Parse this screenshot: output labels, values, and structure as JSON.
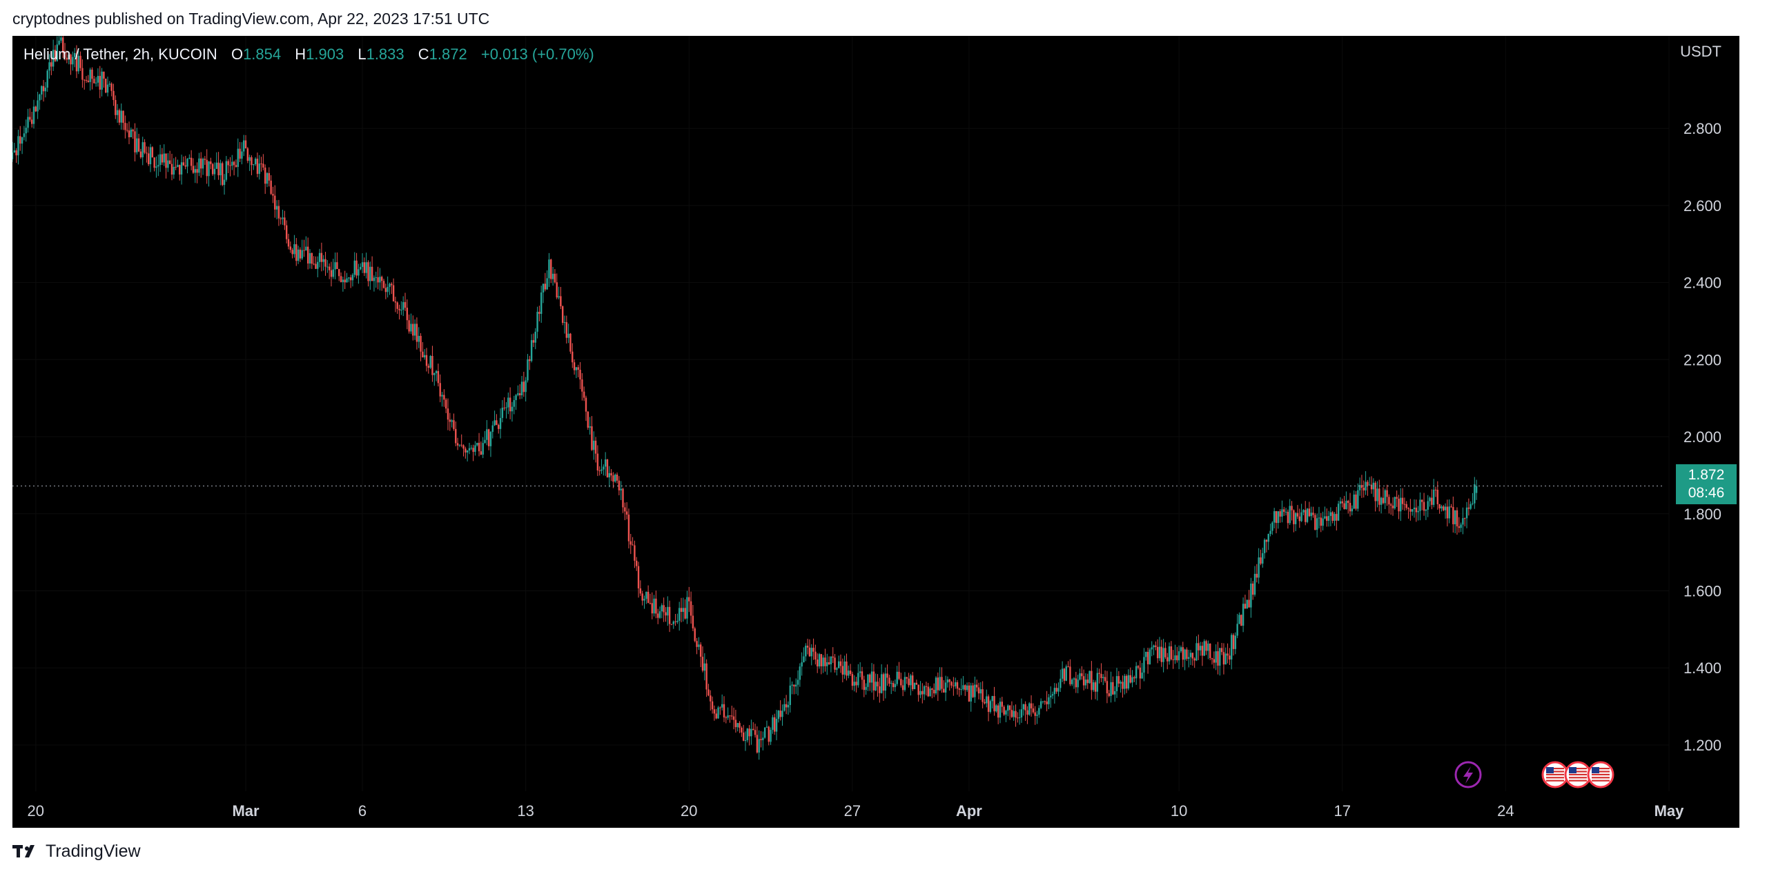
{
  "header": {
    "published_text": "cryptodnes published on TradingView.com, Apr 22, 2023 17:51 UTC"
  },
  "legend": {
    "symbol": "Helium / Tether, 2h, KUCOIN",
    "open_label": "O",
    "open_value": "1.854",
    "high_label": "H",
    "high_value": "1.903",
    "low_label": "L",
    "low_value": "1.833",
    "close_label": "C",
    "close_value": "1.872",
    "change": "+0.013 (+0.70%)"
  },
  "price_axis": {
    "currency": "USDT",
    "last_price": "1.872",
    "countdown": "08:46"
  },
  "footer": {
    "brand": "TradingView"
  },
  "colors": {
    "background": "#000000",
    "up": "#26a69a",
    "down": "#ef5350",
    "axis_text": "#d1d4dc",
    "price_line": "#8a8f98",
    "event_lightning": "#9c27b0",
    "event_flag": "#f23645"
  },
  "events": {
    "lightning_icon": "lightning-icon",
    "us_flag_icons": [
      "us-flag-icon",
      "us-flag-icon",
      "us-flag-icon"
    ]
  },
  "chart_data": {
    "type": "candlestick",
    "title": "Helium / Tether, 2h, KUCOIN",
    "ylabel": "USDT",
    "ylim": [
      1.08,
      3.04
    ],
    "y_ticks": [
      "1.200",
      "1.400",
      "1.600",
      "1.800",
      "2.000",
      "2.200",
      "2.400",
      "2.600",
      "2.800"
    ],
    "x_ticks": [
      {
        "label": "20",
        "date": "2023-02-20"
      },
      {
        "label": "Mar",
        "date": "2023-03-01"
      },
      {
        "label": "6",
        "date": "2023-03-06"
      },
      {
        "label": "13",
        "date": "2023-03-13"
      },
      {
        "label": "20",
        "date": "2023-03-20"
      },
      {
        "label": "27",
        "date": "2023-03-27"
      },
      {
        "label": "Apr",
        "date": "2023-04-01"
      },
      {
        "label": "10",
        "date": "2023-04-10"
      },
      {
        "label": "17",
        "date": "2023-04-17"
      },
      {
        "label": "24",
        "date": "2023-04-24"
      },
      {
        "label": "May",
        "date": "2023-05-01"
      }
    ],
    "x_range": [
      "2023-02-19",
      "2023-05-01"
    ],
    "last_close": 1.872,
    "price_path": [
      [
        "2023-02-19",
        2.72
      ],
      [
        "2023-02-20",
        2.85
      ],
      [
        "2023-02-21",
        3.02
      ],
      [
        "2023-02-22",
        2.95
      ],
      [
        "2023-02-23",
        2.92
      ],
      [
        "2023-02-24",
        2.78
      ],
      [
        "2023-02-25",
        2.72
      ],
      [
        "2023-02-26",
        2.7
      ],
      [
        "2023-02-27",
        2.71
      ],
      [
        "2023-02-28",
        2.68
      ],
      [
        "2023-03-01",
        2.75
      ],
      [
        "2023-03-02",
        2.66
      ],
      [
        "2023-03-03",
        2.48
      ],
      [
        "2023-03-04",
        2.46
      ],
      [
        "2023-03-05",
        2.42
      ],
      [
        "2023-03-06",
        2.44
      ],
      [
        "2023-03-07",
        2.4
      ],
      [
        "2023-03-08",
        2.3
      ],
      [
        "2023-03-09",
        2.18
      ],
      [
        "2023-03-10",
        1.99
      ],
      [
        "2023-03-11",
        1.96
      ],
      [
        "2023-03-12",
        2.06
      ],
      [
        "2023-03-13",
        2.15
      ],
      [
        "2023-03-14",
        2.45
      ],
      [
        "2023-03-15",
        2.22
      ],
      [
        "2023-03-16",
        1.94
      ],
      [
        "2023-03-17",
        1.88
      ],
      [
        "2023-03-18",
        1.58
      ],
      [
        "2023-03-19",
        1.53
      ],
      [
        "2023-03-20",
        1.56
      ],
      [
        "2023-03-21",
        1.3
      ],
      [
        "2023-03-22",
        1.25
      ],
      [
        "2023-03-23",
        1.2
      ],
      [
        "2023-03-24",
        1.28
      ],
      [
        "2023-03-25",
        1.44
      ],
      [
        "2023-03-26",
        1.42
      ],
      [
        "2023-03-27",
        1.38
      ],
      [
        "2023-03-28",
        1.36
      ],
      [
        "2023-03-29",
        1.37
      ],
      [
        "2023-03-30",
        1.35
      ],
      [
        "2023-03-31",
        1.36
      ],
      [
        "2023-04-01",
        1.34
      ],
      [
        "2023-04-02",
        1.3
      ],
      [
        "2023-04-03",
        1.28
      ],
      [
        "2023-04-04",
        1.3
      ],
      [
        "2023-04-05",
        1.38
      ],
      [
        "2023-04-06",
        1.37
      ],
      [
        "2023-04-07",
        1.35
      ],
      [
        "2023-04-08",
        1.38
      ],
      [
        "2023-04-09",
        1.44
      ],
      [
        "2023-04-10",
        1.43
      ],
      [
        "2023-04-11",
        1.45
      ],
      [
        "2023-04-12",
        1.42
      ],
      [
        "2023-04-13",
        1.58
      ],
      [
        "2023-04-14",
        1.79
      ],
      [
        "2023-04-15",
        1.8
      ],
      [
        "2023-04-16",
        1.78
      ],
      [
        "2023-04-17",
        1.81
      ],
      [
        "2023-04-18",
        1.86
      ],
      [
        "2023-04-19",
        1.84
      ],
      [
        "2023-04-20",
        1.79
      ],
      [
        "2023-04-21",
        1.85
      ],
      [
        "2023-04-22",
        1.78
      ],
      [
        "2023-04-22T18:00",
        1.872
      ]
    ]
  }
}
